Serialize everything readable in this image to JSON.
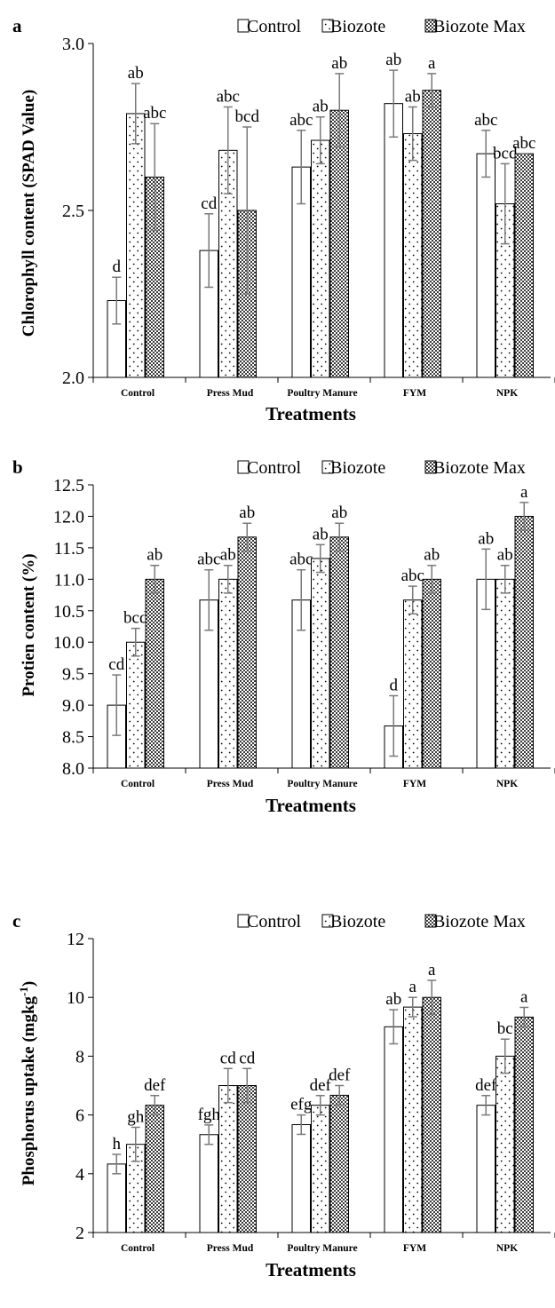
{
  "chart_data": [
    {
      "type": "bar",
      "panel": "a",
      "ylabel": "Chlorophyll content (SPAD Value)",
      "xlabel": "Treatments",
      "ylim": [
        2.0,
        3.0
      ],
      "yticks": [
        "2.0",
        "2.5",
        "3.0"
      ],
      "ytick_values": [
        2.0,
        2.5,
        3.0
      ],
      "categories": [
        "Control",
        "Press Mud",
        "Poultry Manure",
        "FYM",
        "NPK"
      ],
      "legend_position": "top-right",
      "series": [
        {
          "name": "Control",
          "pattern": "plain",
          "values": [
            2.23,
            2.38,
            2.63,
            2.82,
            2.67
          ],
          "errors": [
            0.07,
            0.11,
            0.11,
            0.1,
            0.07
          ],
          "labels": [
            "d",
            "cd",
            "abc",
            "ab",
            "abc"
          ]
        },
        {
          "name": "Biozote",
          "pattern": "dots",
          "values": [
            2.79,
            2.68,
            2.71,
            2.73,
            2.52
          ],
          "errors": [
            0.09,
            0.13,
            0.07,
            0.08,
            0.12
          ],
          "labels": [
            "ab",
            "abc",
            "ab",
            "ab",
            "bcd"
          ]
        },
        {
          "name": "Biozote Max",
          "pattern": "checker",
          "values": [
            2.6,
            2.5,
            2.8,
            2.86,
            2.67
          ],
          "errors": [
            0.16,
            0.25,
            0.11,
            0.05,
            0.0
          ],
          "labels": [
            "abc",
            "bcd",
            "ab",
            "a",
            "abc"
          ]
        }
      ]
    },
    {
      "type": "bar",
      "panel": "b",
      "ylabel": "Protien content (%)",
      "xlabel": "Treatments",
      "ylim": [
        8.0,
        12.5
      ],
      "yticks": [
        "8.0",
        "8.5",
        "9.0",
        "9.5",
        "10.0",
        "10.5",
        "11.0",
        "11.5",
        "12.0",
        "12.5"
      ],
      "ytick_values": [
        8.0,
        8.5,
        9.0,
        9.5,
        10.0,
        10.5,
        11.0,
        11.5,
        12.0,
        12.5
      ],
      "categories": [
        "Control",
        "Press Mud",
        "Poultry Manure",
        "FYM",
        "NPK"
      ],
      "legend_position": "top-right",
      "series": [
        {
          "name": "Control",
          "pattern": "plain",
          "values": [
            9.0,
            10.67,
            10.67,
            8.67,
            11.0
          ],
          "errors": [
            0.48,
            0.48,
            0.48,
            0.48,
            0.48
          ],
          "labels": [
            "cd",
            "abc",
            "abc",
            "d",
            "ab"
          ]
        },
        {
          "name": "Biozote",
          "pattern": "dots",
          "values": [
            10.0,
            11.0,
            11.33,
            10.67,
            11.0
          ],
          "errors": [
            0.22,
            0.22,
            0.22,
            0.22,
            0.22
          ],
          "labels": [
            "bcd",
            "ab",
            "ab",
            "abc",
            "ab"
          ]
        },
        {
          "name": "Biozote Max",
          "pattern": "checker",
          "values": [
            11.0,
            11.67,
            11.67,
            11.0,
            12.0
          ],
          "errors": [
            0.22,
            0.22,
            0.22,
            0.22,
            0.22
          ],
          "labels": [
            "ab",
            "ab",
            "ab",
            "ab",
            "a"
          ]
        }
      ]
    },
    {
      "type": "bar",
      "panel": "c",
      "ylabel": "Phosphorus uptake (mgkg-1)",
      "xlabel": "Treatments",
      "ylim": [
        2,
        12
      ],
      "yticks": [
        "2",
        "4",
        "6",
        "8",
        "10",
        "12"
      ],
      "ytick_values": [
        2,
        4,
        6,
        8,
        10,
        12
      ],
      "categories": [
        "Control",
        "Press Mud",
        "Poultry Manure",
        "FYM",
        "NPK"
      ],
      "legend_position": "top-right",
      "series": [
        {
          "name": "Control",
          "pattern": "plain",
          "values": [
            4.33,
            5.33,
            5.67,
            9.0,
            6.33
          ],
          "errors": [
            0.33,
            0.33,
            0.33,
            0.58,
            0.33
          ],
          "labels": [
            "h",
            "fgh",
            "efg",
            "ab",
            "def"
          ]
        },
        {
          "name": "Biozote",
          "pattern": "dots",
          "values": [
            5.0,
            7.0,
            6.33,
            9.67,
            8.0
          ],
          "errors": [
            0.58,
            0.58,
            0.33,
            0.33,
            0.58
          ],
          "labels": [
            "gh",
            "cd",
            "def",
            "a",
            "bc"
          ]
        },
        {
          "name": "Biozote Max",
          "pattern": "checker",
          "values": [
            6.33,
            7.0,
            6.67,
            10.0,
            9.33
          ],
          "errors": [
            0.33,
            0.58,
            0.33,
            0.58,
            0.33
          ],
          "labels": [
            "def",
            "cd",
            "def",
            "a",
            "a"
          ]
        }
      ]
    }
  ]
}
